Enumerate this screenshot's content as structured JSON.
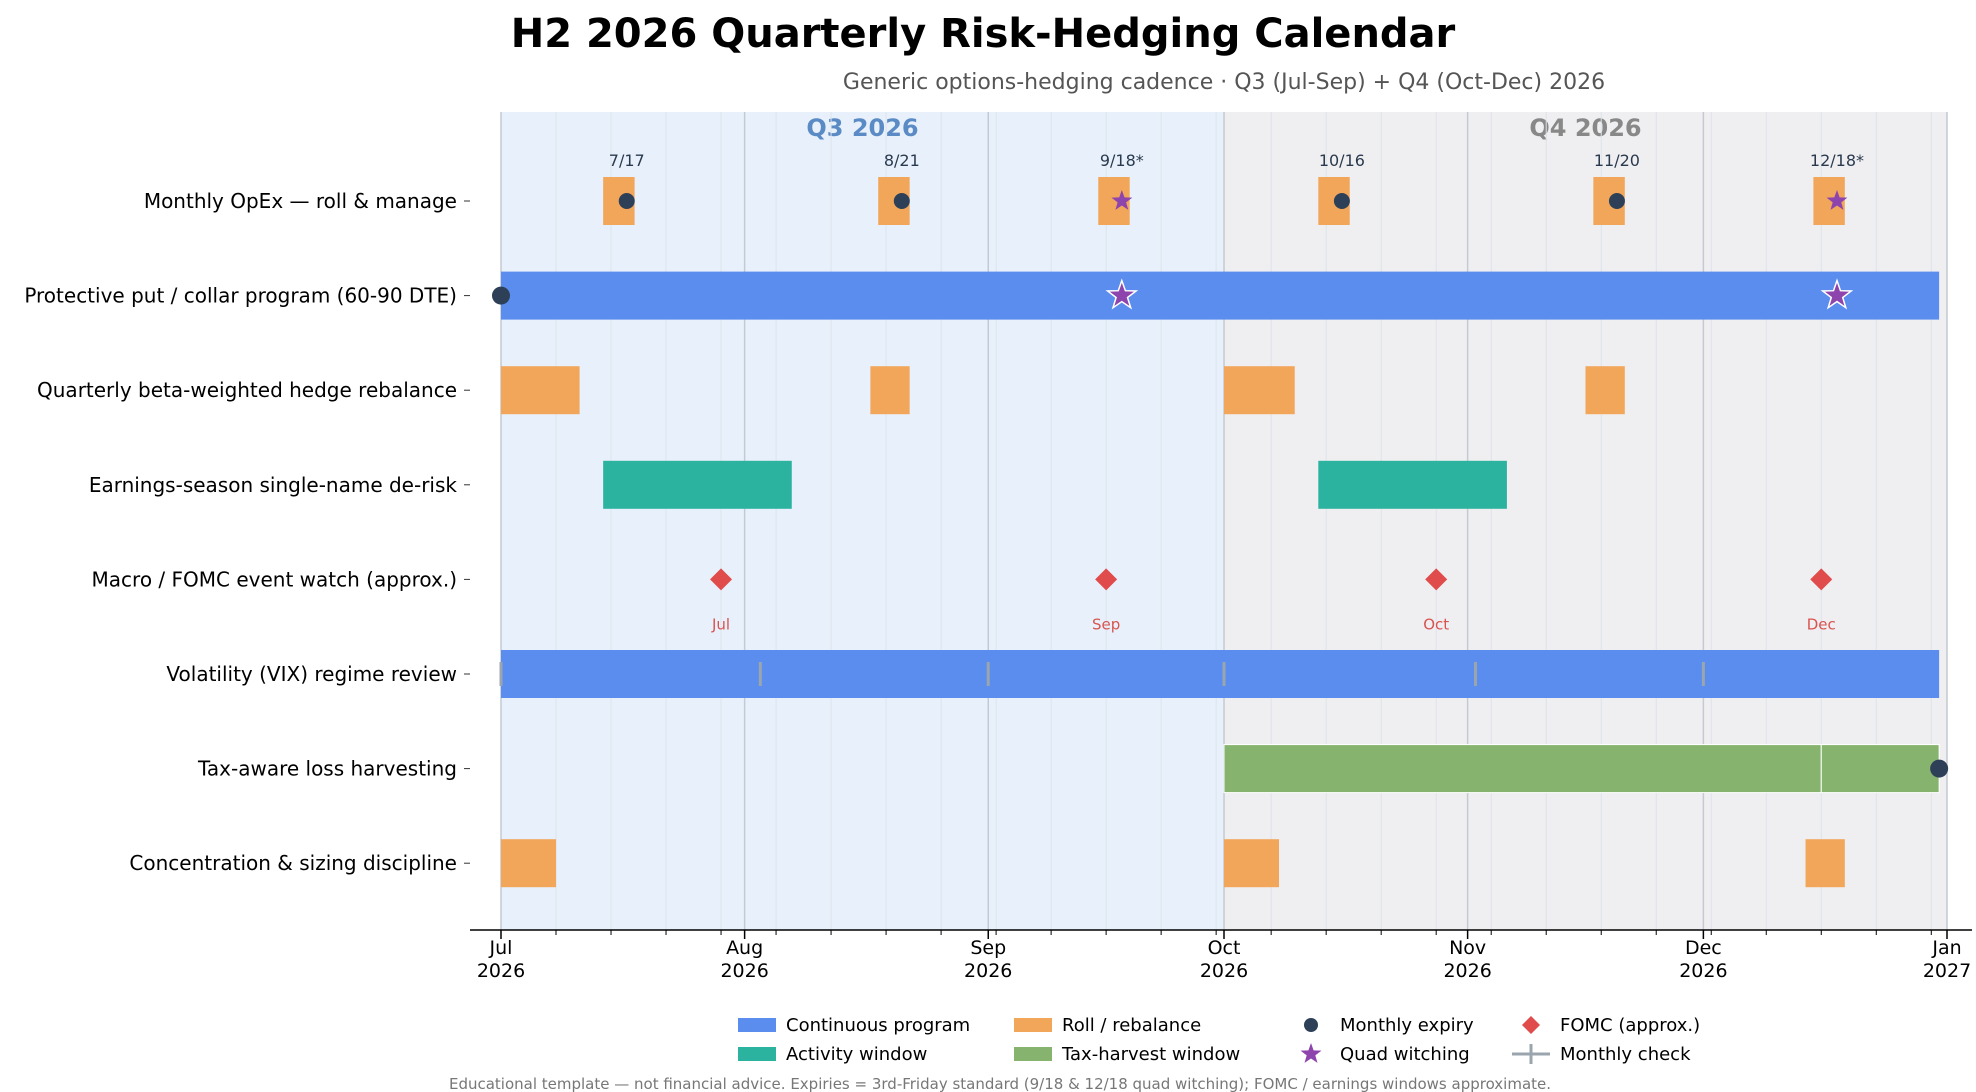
{
  "title": "H2 2026 Quarterly Risk-Hedging Calendar",
  "subtitle": "Generic options-hedging cadence · Q3 (Jul-Sep) + Q4 (Oct-Dec) 2026",
  "footnote": "Educational template — not financial advice. Expiries = 3rd-Friday standard (9/18 & 12/18 quad witching); FOMC / earnings windows approximate.",
  "colors": {
    "continuous": "#5b8def",
    "activity": "#2bb3a0",
    "roll": "#f2a65a",
    "tax": "#86b46f",
    "expiry": "#2e4057",
    "quad": "#8e44ad",
    "fomc": "#e04b4b",
    "check": "#9aa5ad",
    "q3_band": "#e8f1fb",
    "q4_band": "#efeff1",
    "q3_label": "#5b8bc4",
    "q4_label": "#888888"
  },
  "chart_data": {
    "type": "timeline",
    "x_range": [
      "2026-07-01",
      "2027-01-01"
    ],
    "quarters": [
      {
        "label": "Q3 2026",
        "start": "2026-07-01",
        "end": "2026-10-01"
      },
      {
        "label": "Q4 2026",
        "start": "2026-10-01",
        "end": "2027-01-01"
      }
    ],
    "x_ticks": [
      {
        "date": "2026-07-01",
        "month": "Jul",
        "year": "2026"
      },
      {
        "date": "2026-08-01",
        "month": "Aug",
        "year": "2026"
      },
      {
        "date": "2026-09-01",
        "month": "Sep",
        "year": "2026"
      },
      {
        "date": "2026-10-01",
        "month": "Oct",
        "year": "2026"
      },
      {
        "date": "2026-11-01",
        "month": "Nov",
        "year": "2026"
      },
      {
        "date": "2026-12-01",
        "month": "Dec",
        "year": "2026"
      },
      {
        "date": "2027-01-01",
        "month": "Jan",
        "year": "2027"
      }
    ],
    "rows": [
      {
        "label": "Monthly OpEx — roll & manage",
        "bars": [
          {
            "start": "2026-07-14",
            "end": "2026-07-17",
            "kind": "roll"
          },
          {
            "start": "2026-08-18",
            "end": "2026-08-21",
            "kind": "roll"
          },
          {
            "start": "2026-09-15",
            "end": "2026-09-18",
            "kind": "roll"
          },
          {
            "start": "2026-10-13",
            "end": "2026-10-16",
            "kind": "roll"
          },
          {
            "start": "2026-11-17",
            "end": "2026-11-20",
            "kind": "roll"
          },
          {
            "start": "2026-12-15",
            "end": "2026-12-18",
            "kind": "roll"
          }
        ],
        "markers": [
          {
            "date": "2026-07-17",
            "kind": "expiry",
            "label": "7/17"
          },
          {
            "date": "2026-08-21",
            "kind": "expiry",
            "label": "8/21"
          },
          {
            "date": "2026-09-18",
            "kind": "quad",
            "label": "9/18*"
          },
          {
            "date": "2026-10-16",
            "kind": "expiry",
            "label": "10/16"
          },
          {
            "date": "2026-11-20",
            "kind": "expiry",
            "label": "11/20"
          },
          {
            "date": "2026-12-18",
            "kind": "quad",
            "label": "12/18*"
          }
        ]
      },
      {
        "label": "Protective put / collar program (60-90 DTE)",
        "bars": [
          {
            "start": "2026-07-01",
            "end": "2026-12-31",
            "kind": "continuous"
          }
        ],
        "markers": [
          {
            "date": "2026-07-01",
            "kind": "expiry"
          },
          {
            "date": "2026-09-18",
            "kind": "quad"
          },
          {
            "date": "2026-12-18",
            "kind": "quad"
          }
        ]
      },
      {
        "label": "Quarterly beta-weighted hedge rebalance",
        "bars": [
          {
            "start": "2026-07-01",
            "end": "2026-07-10",
            "kind": "roll"
          },
          {
            "start": "2026-08-17",
            "end": "2026-08-21",
            "kind": "roll"
          },
          {
            "start": "2026-10-01",
            "end": "2026-10-09",
            "kind": "roll"
          },
          {
            "start": "2026-11-16",
            "end": "2026-11-20",
            "kind": "roll"
          }
        ],
        "markers": []
      },
      {
        "label": "Earnings-season single-name de-risk",
        "bars": [
          {
            "start": "2026-07-14",
            "end": "2026-08-07",
            "kind": "activity"
          },
          {
            "start": "2026-10-13",
            "end": "2026-11-06",
            "kind": "activity"
          }
        ],
        "markers": []
      },
      {
        "label": "Macro / FOMC event watch (approx.)",
        "bars": [],
        "markers": [
          {
            "date": "2026-07-29",
            "kind": "fomc",
            "label": "Jul"
          },
          {
            "date": "2026-09-16",
            "kind": "fomc",
            "label": "Sep"
          },
          {
            "date": "2026-10-28",
            "kind": "fomc",
            "label": "Oct"
          },
          {
            "date": "2026-12-16",
            "kind": "fomc",
            "label": "Dec"
          }
        ]
      },
      {
        "label": "Volatility (VIX) regime review",
        "bars": [
          {
            "start": "2026-07-01",
            "end": "2026-12-31",
            "kind": "continuous"
          }
        ],
        "markers": [
          {
            "date": "2026-07-01",
            "kind": "check"
          },
          {
            "date": "2026-08-03",
            "kind": "check"
          },
          {
            "date": "2026-09-01",
            "kind": "check"
          },
          {
            "date": "2026-10-01",
            "kind": "check"
          },
          {
            "date": "2026-11-02",
            "kind": "check"
          },
          {
            "date": "2026-12-01",
            "kind": "check"
          }
        ]
      },
      {
        "label": "Tax-aware loss harvesting",
        "bars": [
          {
            "start": "2026-10-01",
            "end": "2026-12-16",
            "kind": "tax"
          },
          {
            "start": "2026-12-16",
            "end": "2026-12-31",
            "kind": "tax"
          }
        ],
        "markers": [
          {
            "date": "2026-12-31",
            "kind": "expiry"
          }
        ]
      },
      {
        "label": "Concentration & sizing discipline",
        "bars": [
          {
            "start": "2026-07-01",
            "end": "2026-07-07",
            "kind": "roll"
          },
          {
            "start": "2026-10-01",
            "end": "2026-10-07",
            "kind": "roll"
          },
          {
            "start": "2026-12-14",
            "end": "2026-12-18",
            "kind": "roll"
          }
        ],
        "markers": []
      }
    ],
    "legend": {
      "position": "bottom-center",
      "entries": [
        {
          "label": "Continuous program",
          "kind": "continuous",
          "shape": "patch"
        },
        {
          "label": "Activity window",
          "kind": "activity",
          "shape": "patch"
        },
        {
          "label": "Roll / rebalance",
          "kind": "roll",
          "shape": "patch"
        },
        {
          "label": "Tax-harvest window",
          "kind": "tax",
          "shape": "patch"
        },
        {
          "label": "Monthly expiry",
          "kind": "expiry",
          "shape": "circle"
        },
        {
          "label": "Quad witching",
          "kind": "quad",
          "shape": "star"
        },
        {
          "label": "FOMC (approx.)",
          "kind": "fomc",
          "shape": "diamond"
        },
        {
          "label": "Monthly check",
          "kind": "check",
          "shape": "cross"
        }
      ]
    }
  }
}
